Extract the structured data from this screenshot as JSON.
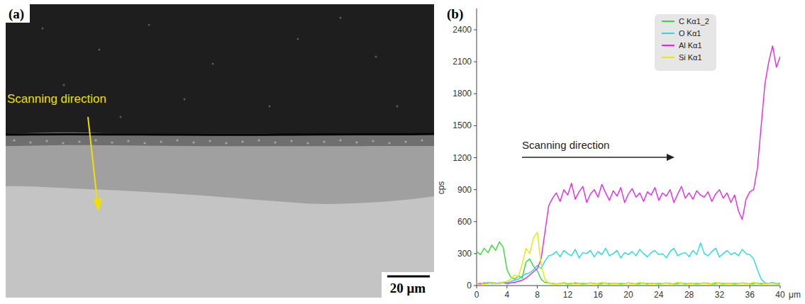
{
  "image_panel": {
    "label": "(a)",
    "annotation": "Scanning direction",
    "scale_bar": "20 μm"
  },
  "chart_data": {
    "type": "line",
    "panel_label": "(b)",
    "y_label": "cps",
    "x_label": "μm",
    "annotation": "Scanning direction",
    "legend": "top-right",
    "grid": false,
    "xlim": [
      0,
      40
    ],
    "xticks": [
      0,
      4,
      8,
      12,
      16,
      20,
      24,
      28,
      32,
      36,
      40
    ],
    "ylim": [
      0,
      2600
    ],
    "yticks": [
      0,
      300,
      600,
      900,
      1200,
      1500,
      1800,
      2100,
      2400
    ],
    "x": [
      0,
      0.5,
      1,
      1.5,
      2,
      2.5,
      3,
      3.5,
      4,
      4.5,
      5,
      5.5,
      6,
      6.5,
      7,
      7.5,
      8,
      8.5,
      9,
      9.5,
      10,
      10.5,
      11,
      11.5,
      12,
      12.5,
      13,
      13.5,
      14,
      14.5,
      15,
      15.5,
      16,
      16.5,
      17,
      17.5,
      18,
      18.5,
      19,
      19.5,
      20,
      20.5,
      21,
      21.5,
      22,
      22.5,
      23,
      23.5,
      24,
      24.5,
      25,
      25.5,
      26,
      26.5,
      27,
      27.5,
      28,
      28.5,
      29,
      29.5,
      30,
      30.5,
      31,
      31.5,
      32,
      32.5,
      33,
      33.5,
      34,
      34.5,
      35,
      35.5,
      36,
      36.5,
      37,
      37.5,
      38,
      38.5,
      39,
      39.5,
      40
    ],
    "series": [
      {
        "name": "C Kα1_2",
        "color": "#33dd33",
        "values": [
          320,
          290,
          350,
          310,
          380,
          330,
          410,
          360,
          150,
          80,
          60,
          90,
          70,
          220,
          250,
          180,
          140,
          60,
          30,
          25,
          20,
          15,
          20,
          25,
          15,
          20,
          25,
          20,
          15,
          20,
          25,
          20,
          15,
          20,
          25,
          15,
          20,
          20,
          15,
          20,
          25,
          20,
          15,
          20,
          25,
          15,
          20,
          20,
          15,
          20,
          25,
          20,
          15,
          20,
          25,
          15,
          20,
          20,
          15,
          20,
          25,
          20,
          15,
          20,
          25,
          15,
          20,
          20,
          15,
          20,
          25,
          20,
          15,
          20,
          25,
          15,
          20,
          20,
          25,
          15,
          20
        ]
      },
      {
        "name": "O Kα1",
        "color": "#22dddd",
        "values": [
          20,
          25,
          15,
          30,
          20,
          25,
          20,
          30,
          25,
          40,
          50,
          60,
          90,
          110,
          120,
          150,
          190,
          160,
          230,
          280,
          290,
          320,
          270,
          330,
          300,
          280,
          340,
          260,
          310,
          300,
          330,
          270,
          320,
          290,
          350,
          280,
          300,
          330,
          260,
          310,
          290,
          320,
          280,
          340,
          300,
          270,
          310,
          330,
          290,
          300,
          260,
          320,
          350,
          280,
          300,
          310,
          270,
          330,
          290,
          400,
          300,
          280,
          320,
          350,
          270,
          300,
          330,
          290,
          310,
          280,
          340,
          300,
          290,
          250,
          150,
          60,
          25,
          20,
          30,
          20,
          25
        ]
      },
      {
        "name": "Al Kα1",
        "color": "#ee22ee",
        "values": [
          20,
          15,
          25,
          20,
          30,
          20,
          25,
          30,
          20,
          25,
          30,
          40,
          50,
          70,
          100,
          130,
          160,
          250,
          500,
          750,
          820,
          870,
          790,
          900,
          850,
          960,
          810,
          880,
          930,
          780,
          860,
          900,
          830,
          950,
          870,
          800,
          890,
          840,
          920,
          780,
          860,
          910,
          830,
          870,
          790,
          880,
          850,
          920,
          800,
          870,
          840,
          900,
          780,
          860,
          930,
          820,
          870,
          810,
          890,
          850,
          830,
          880,
          790,
          860,
          900,
          820,
          870,
          780,
          850,
          700,
          620,
          810,
          880,
          900,
          1100,
          1500,
          1900,
          2100,
          2250,
          2050,
          2150
        ]
      },
      {
        "name": "Si Kα1",
        "color": "#e8e800",
        "values": [
          20,
          25,
          15,
          20,
          30,
          20,
          25,
          30,
          40,
          60,
          100,
          80,
          200,
          350,
          300,
          450,
          500,
          200,
          60,
          20,
          25,
          15,
          20,
          30,
          20,
          25,
          15,
          20,
          25,
          20,
          25,
          15,
          20,
          30,
          20,
          25,
          15,
          20,
          25,
          20,
          25,
          15,
          20,
          30,
          20,
          25,
          15,
          20,
          25,
          20,
          25,
          15,
          20,
          30,
          20,
          25,
          15,
          20,
          25,
          20,
          25,
          15,
          20,
          30,
          20,
          25,
          15,
          20,
          25,
          20,
          25,
          15,
          20,
          30,
          20,
          25,
          15,
          20,
          25,
          20,
          25
        ]
      }
    ]
  }
}
